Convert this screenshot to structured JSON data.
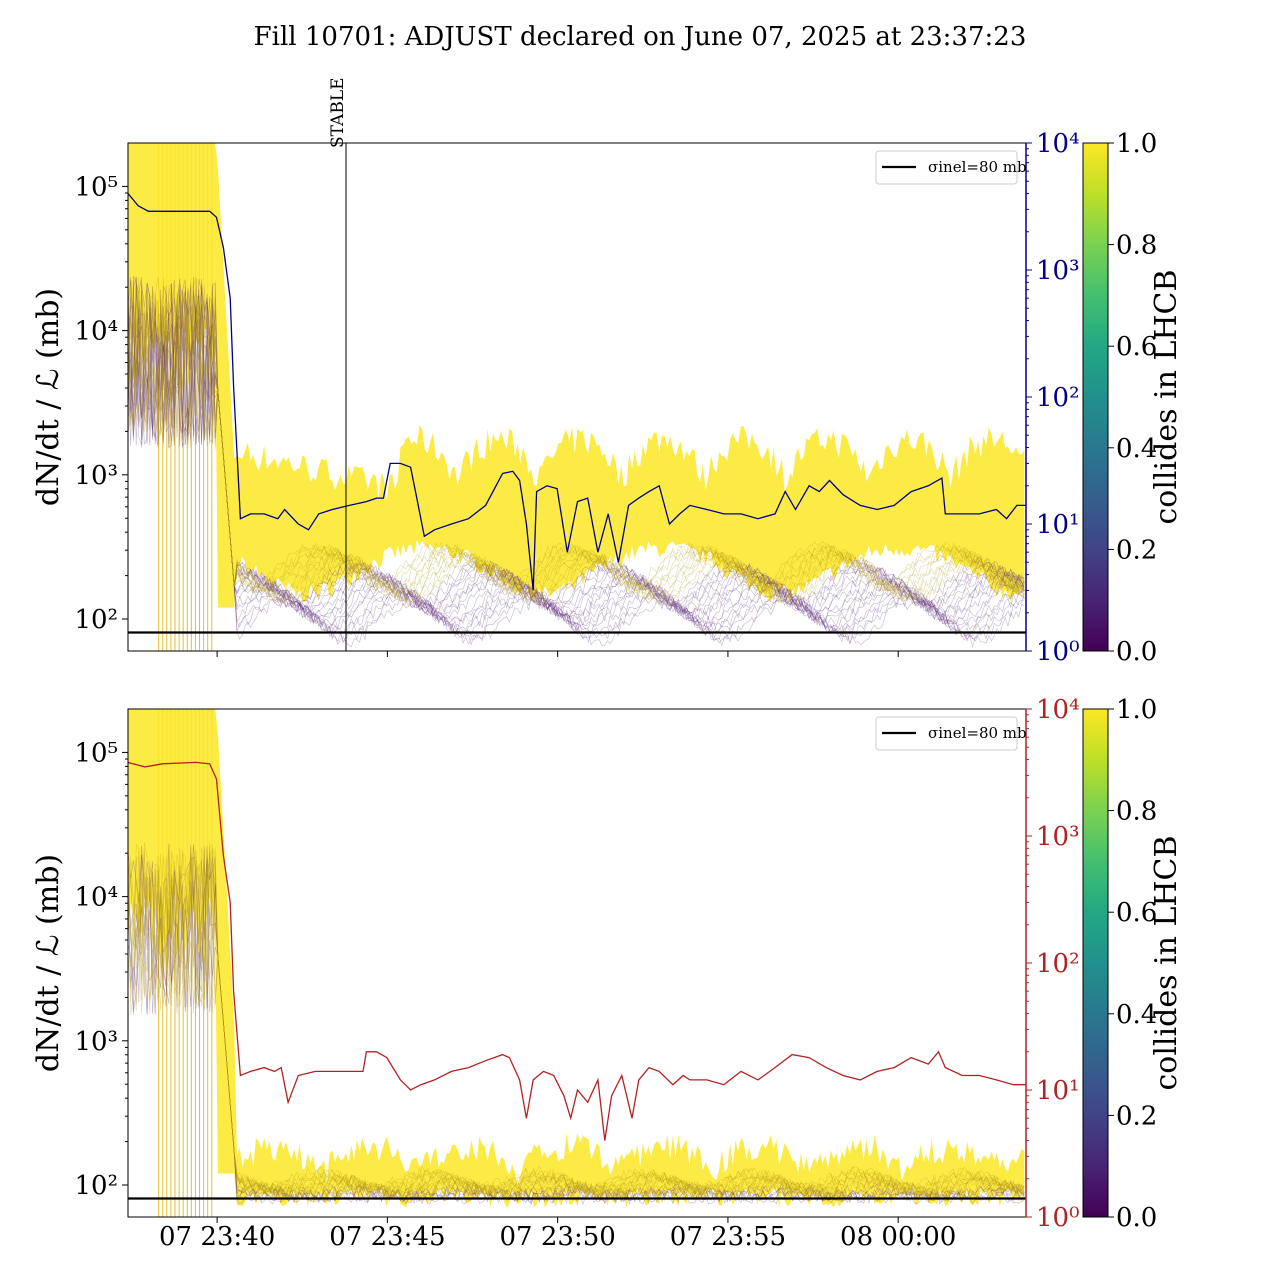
{
  "chart_data": [
    {
      "type": "line",
      "title": "Fill 10701: ADJUST declared on June 07, 2025 at 23:37:23",
      "annotation": "STABLE",
      "ylabel": "dN/dt / ℒ (mb)",
      "yscale": "log",
      "ylim": [
        60,
        200000
      ],
      "yticks": [
        100,
        1000,
        10000,
        100000
      ],
      "ytick_labels": [
        "10²",
        "10³",
        "10⁴",
        "10⁵"
      ],
      "y2scale": "log",
      "y2lim": [
        1,
        10000
      ],
      "y2ticks": [
        1,
        10,
        100,
        1000,
        10000
      ],
      "y2tick_labels": [
        "10⁰",
        "10¹",
        "10²",
        "10³",
        "10⁴"
      ],
      "y2_color": "#00008b",
      "legend": {
        "label": "σinel=80 mb",
        "position": "top-right"
      },
      "reference_line": 80,
      "colorbar": {
        "label": "collides in LHCB",
        "ticks": [
          "0.0",
          "0.2",
          "0.4",
          "0.6",
          "0.8",
          "1.0"
        ]
      },
      "stable_time": "07 23:44"
    },
    {
      "type": "line",
      "ylabel": "dN/dt / ℒ (mb)",
      "yscale": "log",
      "ylim": [
        60,
        200000
      ],
      "yticks": [
        100,
        1000,
        10000,
        100000
      ],
      "ytick_labels": [
        "10²",
        "10³",
        "10⁴",
        "10⁵"
      ],
      "y2scale": "log",
      "y2lim": [
        1,
        10000
      ],
      "y2ticks": [
        1,
        10,
        100,
        1000,
        10000
      ],
      "y2tick_labels": [
        "10⁰",
        "10¹",
        "10²",
        "10³",
        "10⁴"
      ],
      "y2_color": "#b22222",
      "legend": {
        "label": "σinel=80 mb",
        "position": "top-right"
      },
      "reference_line": 80,
      "colorbar": {
        "label": "collides in LHCB",
        "ticks": [
          "0.0",
          "0.2",
          "0.4",
          "0.6",
          "0.8",
          "1.0"
        ]
      },
      "xticks": [
        "07 23:40",
        "07 23:45",
        "07 23:50",
        "07 23:55",
        "08 00:00"
      ],
      "xlim": [
        "07 23:37:23",
        "08 00:03:45"
      ]
    }
  ],
  "series": {
    "top_line": [
      [
        0,
        4000
      ],
      [
        0.3,
        3200
      ],
      [
        0.6,
        2900
      ],
      [
        2.4,
        2900
      ],
      [
        2.6,
        2600
      ],
      [
        2.8,
        1500
      ],
      [
        3.0,
        600
      ],
      [
        3.1,
        120
      ],
      [
        3.3,
        11
      ],
      [
        3.6,
        12
      ],
      [
        4.0,
        12
      ],
      [
        4.4,
        11
      ],
      [
        4.6,
        13
      ],
      [
        5.0,
        10
      ],
      [
        5.3,
        9
      ],
      [
        5.6,
        12
      ],
      [
        6.0,
        13
      ],
      [
        6.5,
        14
      ],
      [
        7.0,
        15
      ],
      [
        7.3,
        16
      ],
      [
        7.5,
        16
      ],
      [
        7.7,
        30
      ],
      [
        8.0,
        30
      ],
      [
        8.3,
        28
      ],
      [
        8.5,
        15
      ],
      [
        8.7,
        8
      ],
      [
        9.0,
        9
      ],
      [
        9.5,
        10
      ],
      [
        10.0,
        11
      ],
      [
        10.5,
        14
      ],
      [
        11.0,
        25
      ],
      [
        11.3,
        26
      ],
      [
        11.5,
        22
      ],
      [
        11.7,
        10
      ],
      [
        11.9,
        3
      ],
      [
        12.0,
        18
      ],
      [
        12.3,
        20
      ],
      [
        12.6,
        19
      ],
      [
        12.9,
        6
      ],
      [
        13.2,
        15
      ],
      [
        13.5,
        16
      ],
      [
        13.8,
        6
      ],
      [
        14.1,
        12
      ],
      [
        14.4,
        5
      ],
      [
        14.7,
        14
      ],
      [
        15.0,
        16
      ],
      [
        15.3,
        18
      ],
      [
        15.6,
        20
      ],
      [
        15.9,
        10
      ],
      [
        16.2,
        12
      ],
      [
        16.5,
        14
      ],
      [
        17.0,
        13
      ],
      [
        17.5,
        12
      ],
      [
        18.0,
        12
      ],
      [
        18.5,
        11
      ],
      [
        19.0,
        12
      ],
      [
        19.3,
        18
      ],
      [
        19.6,
        13
      ],
      [
        20.0,
        20
      ],
      [
        20.3,
        18
      ],
      [
        20.6,
        22
      ],
      [
        21.0,
        17
      ],
      [
        21.5,
        14
      ],
      [
        22.0,
        13
      ],
      [
        22.5,
        14
      ],
      [
        23.0,
        18
      ],
      [
        23.5,
        20
      ],
      [
        23.9,
        23
      ],
      [
        24.0,
        12
      ],
      [
        24.5,
        12
      ],
      [
        25.0,
        12
      ],
      [
        25.5,
        13
      ],
      [
        25.8,
        11
      ],
      [
        26.1,
        14
      ],
      [
        26.37,
        14
      ]
    ],
    "bottom_line": [
      [
        0,
        3800
      ],
      [
        0.5,
        3500
      ],
      [
        1.0,
        3700
      ],
      [
        2.0,
        3800
      ],
      [
        2.4,
        3700
      ],
      [
        2.6,
        2800
      ],
      [
        2.8,
        700
      ],
      [
        3.0,
        300
      ],
      [
        3.1,
        60
      ],
      [
        3.3,
        13
      ],
      [
        3.6,
        14
      ],
      [
        4.0,
        15
      ],
      [
        4.3,
        14
      ],
      [
        4.5,
        15
      ],
      [
        4.7,
        8
      ],
      [
        5.0,
        13
      ],
      [
        5.5,
        14
      ],
      [
        6.0,
        14
      ],
      [
        6.5,
        14
      ],
      [
        6.9,
        14
      ],
      [
        7.0,
        20
      ],
      [
        7.3,
        20
      ],
      [
        7.6,
        18
      ],
      [
        8.0,
        12
      ],
      [
        8.3,
        10
      ],
      [
        8.6,
        11
      ],
      [
        9.0,
        12
      ],
      [
        9.5,
        14
      ],
      [
        10.0,
        15
      ],
      [
        10.5,
        17
      ],
      [
        11.0,
        19
      ],
      [
        11.2,
        18
      ],
      [
        11.5,
        12
      ],
      [
        11.7,
        6
      ],
      [
        11.9,
        12
      ],
      [
        12.2,
        14
      ],
      [
        12.5,
        13
      ],
      [
        12.8,
        9
      ],
      [
        13.0,
        6
      ],
      [
        13.2,
        10
      ],
      [
        13.5,
        8
      ],
      [
        13.8,
        12
      ],
      [
        14.0,
        4
      ],
      [
        14.2,
        9
      ],
      [
        14.5,
        13
      ],
      [
        14.8,
        6
      ],
      [
        15.0,
        12
      ],
      [
        15.3,
        15
      ],
      [
        15.6,
        14
      ],
      [
        16.0,
        11
      ],
      [
        16.3,
        13
      ],
      [
        16.5,
        12
      ],
      [
        17.0,
        12
      ],
      [
        17.5,
        11
      ],
      [
        18.0,
        14
      ],
      [
        18.5,
        12
      ],
      [
        19.0,
        15
      ],
      [
        19.5,
        19
      ],
      [
        20.0,
        18
      ],
      [
        20.5,
        15
      ],
      [
        21.0,
        13
      ],
      [
        21.5,
        12
      ],
      [
        22.0,
        14
      ],
      [
        22.5,
        15
      ],
      [
        23.0,
        18
      ],
      [
        23.5,
        16
      ],
      [
        23.8,
        20
      ],
      [
        24.0,
        15
      ],
      [
        24.5,
        13
      ],
      [
        25.0,
        13
      ],
      [
        25.5,
        12
      ],
      [
        26.0,
        11
      ],
      [
        26.37,
        11
      ]
    ]
  }
}
